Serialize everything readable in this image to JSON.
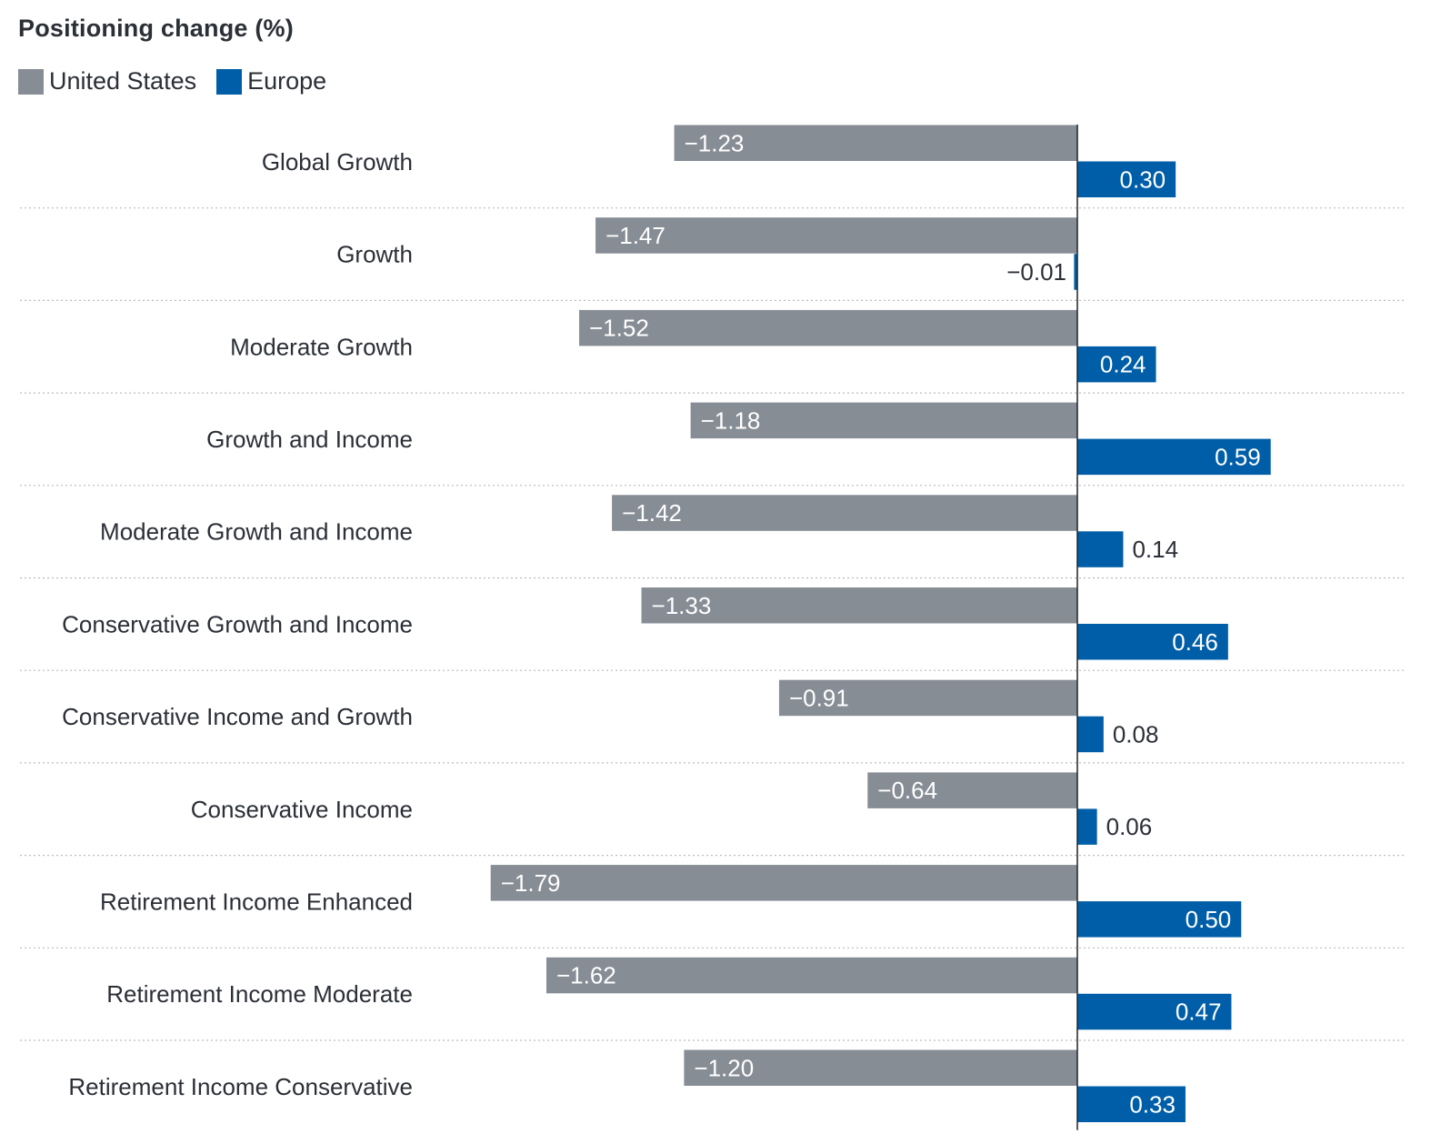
{
  "chart_data": {
    "type": "bar",
    "orientation": "horizontal",
    "title": "Positioning change (%)",
    "categories": [
      "Global Growth",
      "Growth",
      "Moderate Growth",
      "Growth and Income",
      "Moderate Growth and Income",
      "Conservative Growth and Income",
      "Conservative Income and Growth",
      "Conservative Income",
      "Retirement Income Enhanced",
      "Retirement Income Moderate",
      "Retirement Income Conservative"
    ],
    "series": [
      {
        "name": "United States",
        "color": "#878d95",
        "values": [
          -1.23,
          -1.47,
          -1.52,
          -1.18,
          -1.42,
          -1.33,
          -0.91,
          -0.64,
          -1.79,
          -1.62,
          -1.2
        ],
        "labels": [
          "−1.23",
          "−1.47",
          "−1.52",
          "−1.18",
          "−1.42",
          "−1.33",
          "−0.91",
          "−0.64",
          "−1.79",
          "−1.62",
          "−1.20"
        ]
      },
      {
        "name": "Europe",
        "color": "#005ea8",
        "values": [
          0.3,
          -0.01,
          0.24,
          0.59,
          0.14,
          0.46,
          0.08,
          0.06,
          0.5,
          0.47,
          0.33
        ],
        "labels": [
          "0.30",
          "−0.01",
          "0.24",
          "0.59",
          "0.14",
          "0.46",
          "0.08",
          "0.06",
          "0.50",
          "0.47",
          "0.33"
        ]
      }
    ],
    "xlim": [
      -1.79,
      0.59
    ],
    "xlabel": "",
    "ylabel": "",
    "legend": "top-left",
    "grid": "dotted separators between categories"
  }
}
